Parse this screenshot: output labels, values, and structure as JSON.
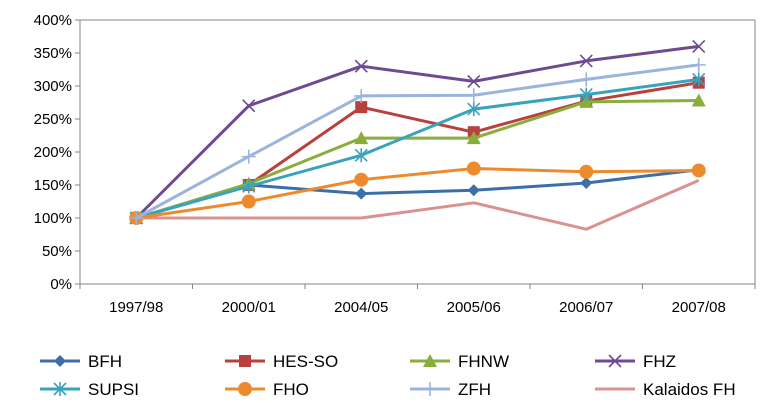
{
  "chart_data": {
    "type": "line",
    "title": "",
    "xlabel": "",
    "ylabel": "",
    "categories": [
      "1997/98",
      "2000/01",
      "2004/05",
      "2005/06",
      "2006/07",
      "2007/08"
    ],
    "ylim": [
      0,
      400
    ],
    "y_tick_values": [
      0,
      50,
      100,
      150,
      200,
      250,
      300,
      350,
      400
    ],
    "y_tick_labels": [
      "0%",
      "50%",
      "100%",
      "150%",
      "200%",
      "250%",
      "300%",
      "350%",
      "400%"
    ],
    "grid": false,
    "legend_position": "bottom",
    "series": [
      {
        "name": "BFH",
        "color": "#3C6EAA",
        "marker": "diamond",
        "values": [
          100,
          150,
          137,
          142,
          153,
          173
        ]
      },
      {
        "name": "HES-SO",
        "color": "#B8403D",
        "marker": "square",
        "values": [
          100,
          150,
          268,
          230,
          277,
          305
        ]
      },
      {
        "name": "FHNW",
        "color": "#8AAE3C",
        "marker": "triangle",
        "values": [
          100,
          152,
          221,
          221,
          276,
          278
        ]
      },
      {
        "name": "FHZ",
        "color": "#6E4A92",
        "marker": "x",
        "values": [
          100,
          270,
          330,
          307,
          338,
          360
        ]
      },
      {
        "name": "SUPSI",
        "color": "#3AA3BC",
        "marker": "star",
        "values": [
          100,
          148,
          195,
          265,
          287,
          310
        ]
      },
      {
        "name": "FHO",
        "color": "#EE8A2E",
        "marker": "circle",
        "values": [
          100,
          125,
          158,
          175,
          170,
          172
        ]
      },
      {
        "name": "ZFH",
        "color": "#9BB4DD",
        "marker": "plus",
        "values": [
          100,
          193,
          285,
          286,
          310,
          332
        ]
      },
      {
        "name": "Kalaidos FH",
        "color": "#D99290",
        "marker": "none",
        "values": [
          100,
          100,
          100,
          123,
          83,
          157
        ]
      }
    ]
  }
}
